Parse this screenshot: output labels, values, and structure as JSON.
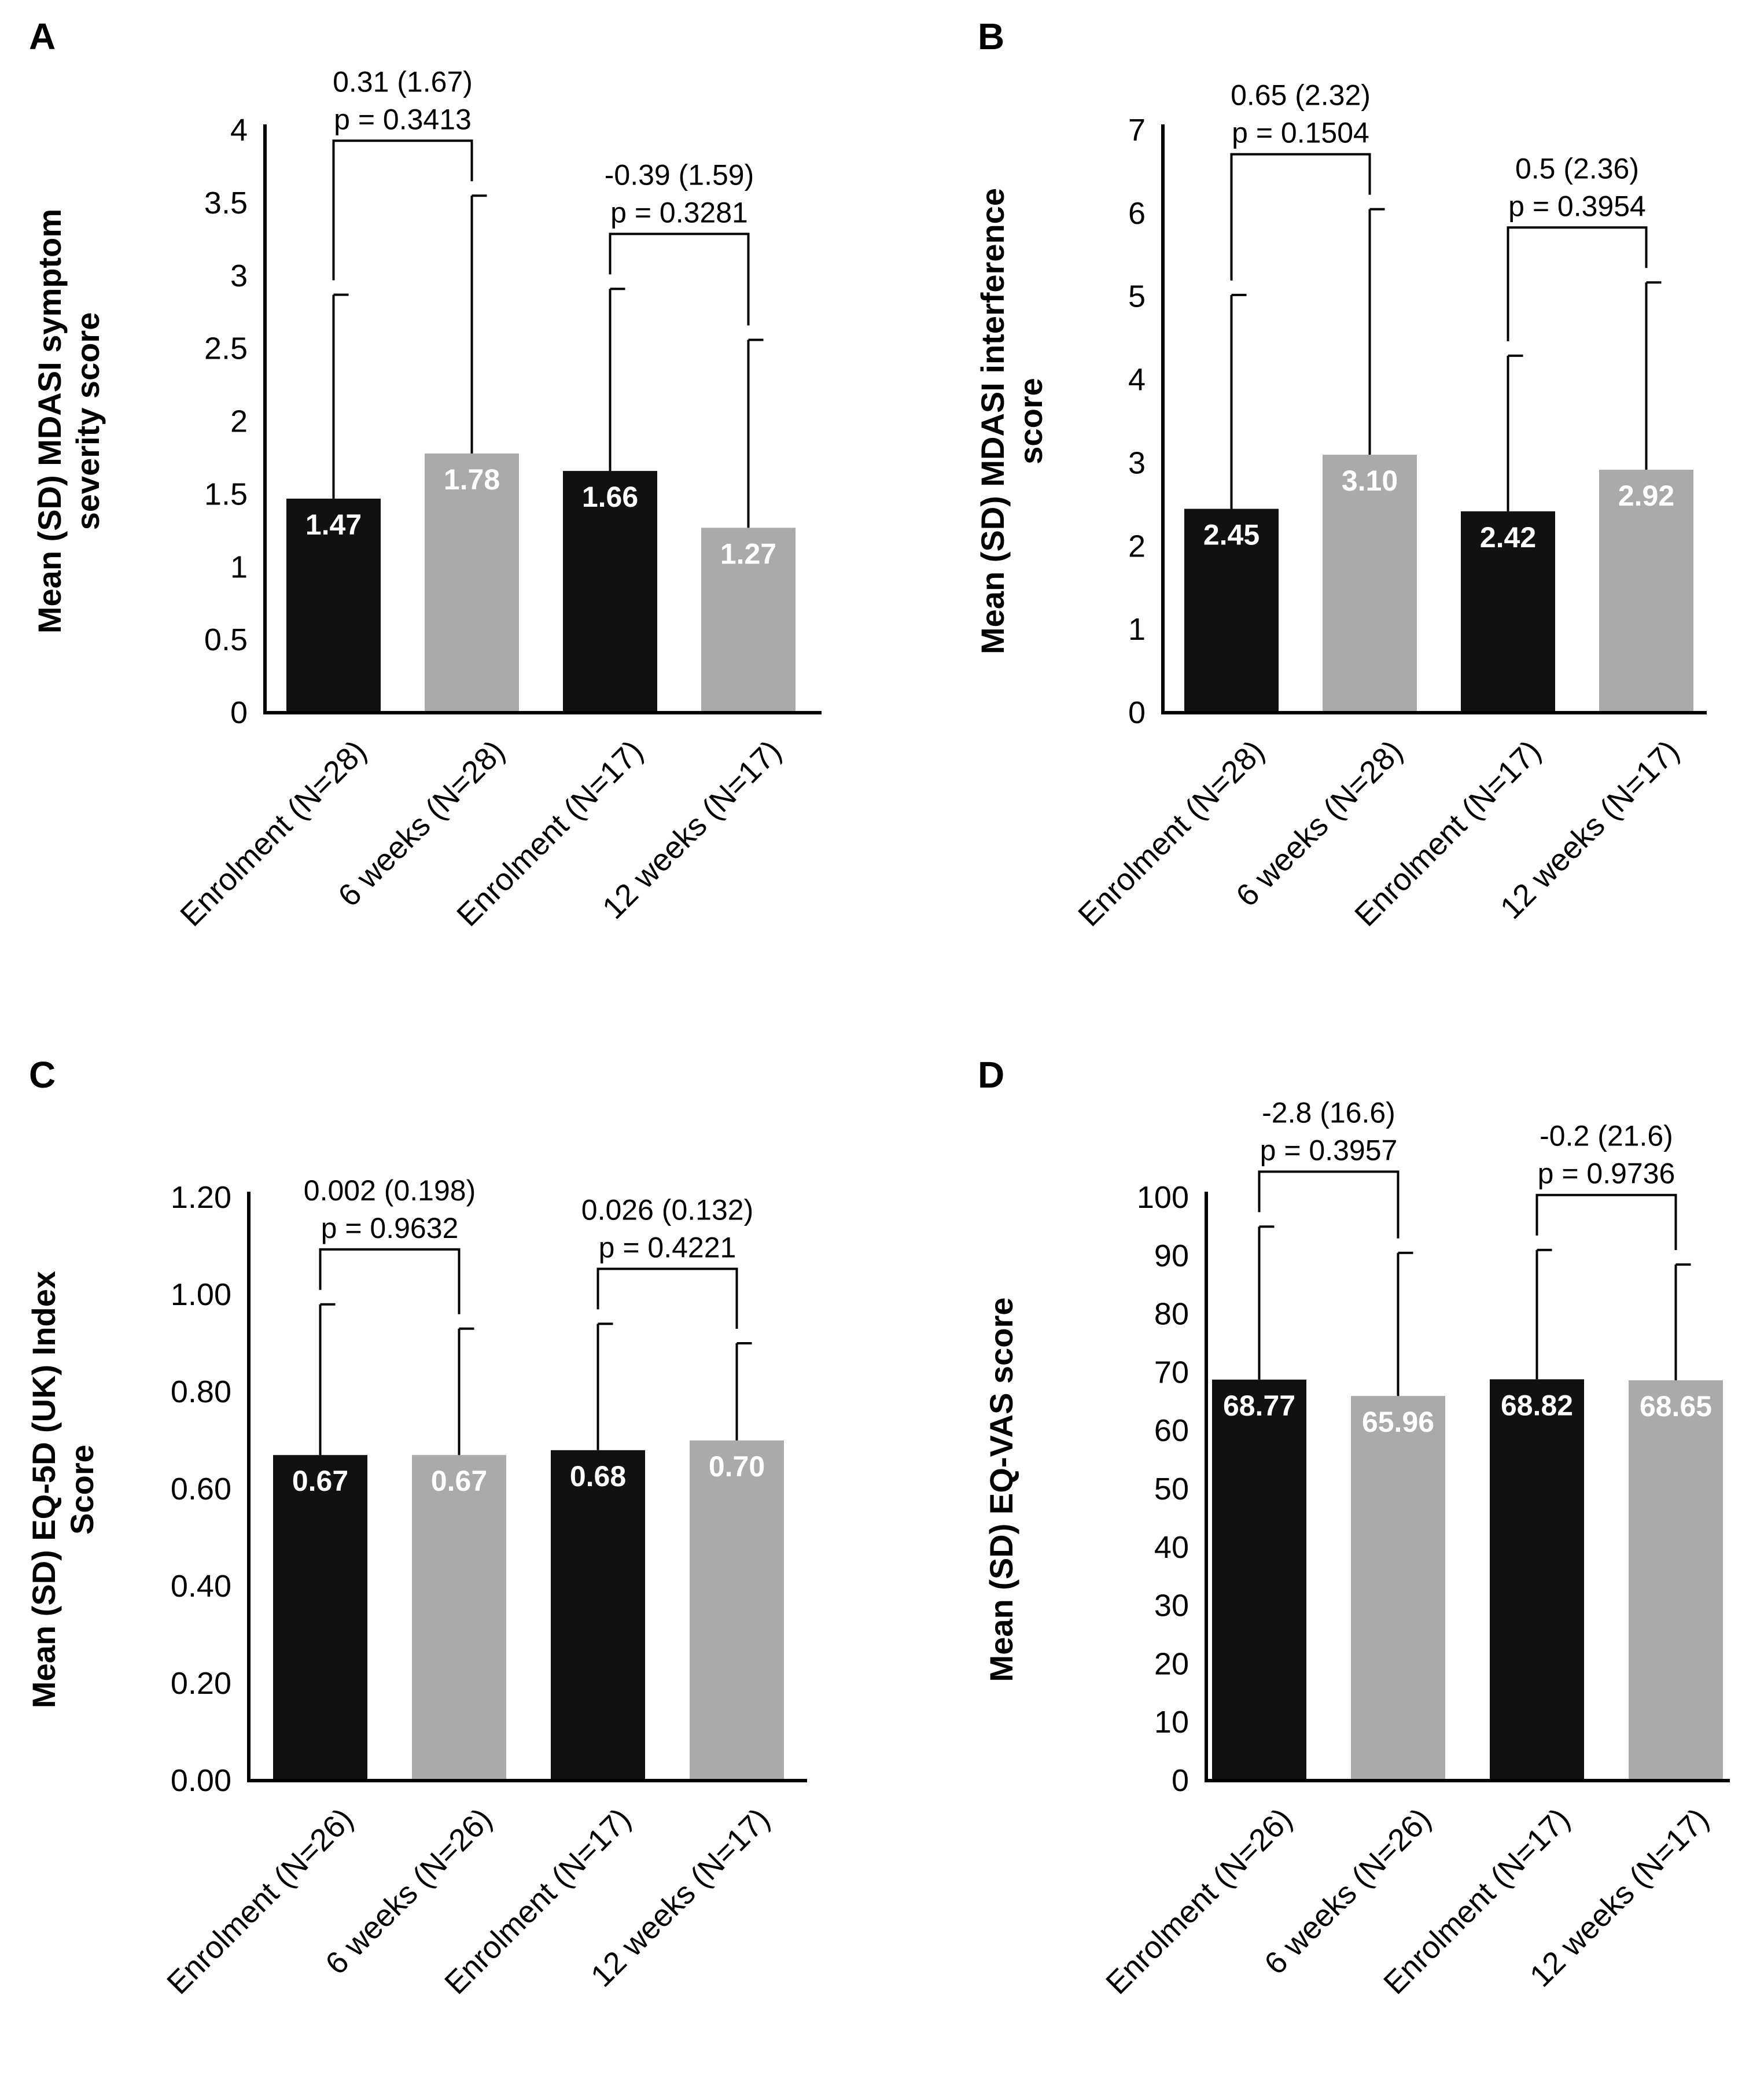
{
  "colors": {
    "enrolment_bar": "#111111",
    "followup_bar": "#aaaaaa",
    "axis": "#000000",
    "value_label": "#ffffff"
  },
  "chart_data": [
    {
      "type": "bar",
      "panel": "A",
      "ylabel": [
        "Mean (SD) MDASI symptom",
        "severity score"
      ],
      "ylim": [
        0,
        4
      ],
      "yticks": [
        "0",
        "0.5",
        "1",
        "1.5",
        "2",
        "2.5",
        "3",
        "3.5",
        "4"
      ],
      "categories": [
        "Enrolment (N=28)",
        "6 weeks (N=28)",
        "Enrolment (N=17)",
        "12 weeks (N=17)"
      ],
      "values": [
        1.47,
        1.78,
        1.66,
        1.27
      ],
      "value_labels": [
        "1.47",
        "1.78",
        "1.66",
        "1.27"
      ],
      "error_upper": [
        2.87,
        3.55,
        2.91,
        2.56
      ],
      "comparisons": [
        {
          "from": 0,
          "to": 1,
          "line1": "0.31 (1.67)",
          "line2": "p = 0.3413"
        },
        {
          "from": 2,
          "to": 3,
          "line1": "-0.39 (1.59)",
          "line2": "p = 0.3281"
        }
      ]
    },
    {
      "type": "bar",
      "panel": "B",
      "ylabel": [
        "Mean (SD) MDASI interference",
        "score"
      ],
      "ylim": [
        0,
        7
      ],
      "yticks": [
        "0",
        "1",
        "2",
        "3",
        "4",
        "5",
        "6",
        "7"
      ],
      "categories": [
        "Enrolment (N=28)",
        "6 weeks (N=28)",
        "Enrolment (N=17)",
        "12 weeks (N=17)"
      ],
      "values": [
        2.45,
        3.1,
        2.42,
        2.92
      ],
      "value_labels": [
        "2.45",
        "3.10",
        "2.42",
        "2.92"
      ],
      "error_upper": [
        5.02,
        6.05,
        4.29,
        5.17
      ],
      "comparisons": [
        {
          "from": 0,
          "to": 1,
          "line1": "0.65 (2.32)",
          "line2": "p = 0.1504"
        },
        {
          "from": 2,
          "to": 3,
          "line1": "0.5 (2.36)",
          "line2": "p = 0.3954"
        }
      ]
    },
    {
      "type": "bar",
      "panel": "C",
      "ylabel": [
        "Mean (SD) EQ-5D (UK) Index",
        "Score"
      ],
      "ylim": [
        0,
        1.2
      ],
      "yticks": [
        "0.00",
        "0.20",
        "0.40",
        "0.60",
        "0.80",
        "1.00",
        "1.20"
      ],
      "categories": [
        "Enrolment (N=26)",
        "6 weeks (N=26)",
        "Enrolment (N=17)",
        "12 weeks (N=17)"
      ],
      "values": [
        0.67,
        0.67,
        0.68,
        0.7
      ],
      "value_labels": [
        "0.67",
        "0.67",
        "0.68",
        "0.70"
      ],
      "error_upper": [
        0.98,
        0.93,
        0.94,
        0.9
      ],
      "comparisons": [
        {
          "from": 0,
          "to": 1,
          "line1": "0.002 (0.198)",
          "line2": "p = 0.9632"
        },
        {
          "from": 2,
          "to": 3,
          "line1": "0.026 (0.132)",
          "line2": "p = 0.4221"
        }
      ]
    },
    {
      "type": "bar",
      "panel": "D",
      "ylabel": [
        "Mean (SD) EQ-VAS score"
      ],
      "ylim": [
        0,
        100
      ],
      "yticks": [
        "0",
        "10",
        "20",
        "30",
        "40",
        "50",
        "60",
        "70",
        "80",
        "90",
        "100"
      ],
      "categories": [
        "Enrolment (N=26)",
        "6 weeks (N=26)",
        "Enrolment (N=17)",
        "12 weeks (N=17)"
      ],
      "values": [
        68.77,
        65.96,
        68.82,
        68.65
      ],
      "value_labels": [
        "68.77",
        "65.96",
        "68.82",
        "68.65"
      ],
      "error_upper": [
        95,
        90.5,
        91,
        88.5
      ],
      "comparisons": [
        {
          "from": 0,
          "to": 1,
          "line1": "-2.8 (16.6)",
          "line2": "p = 0.3957"
        },
        {
          "from": 2,
          "to": 3,
          "line1": "-0.2 (21.6)",
          "line2": "p = 0.9736"
        }
      ]
    }
  ]
}
